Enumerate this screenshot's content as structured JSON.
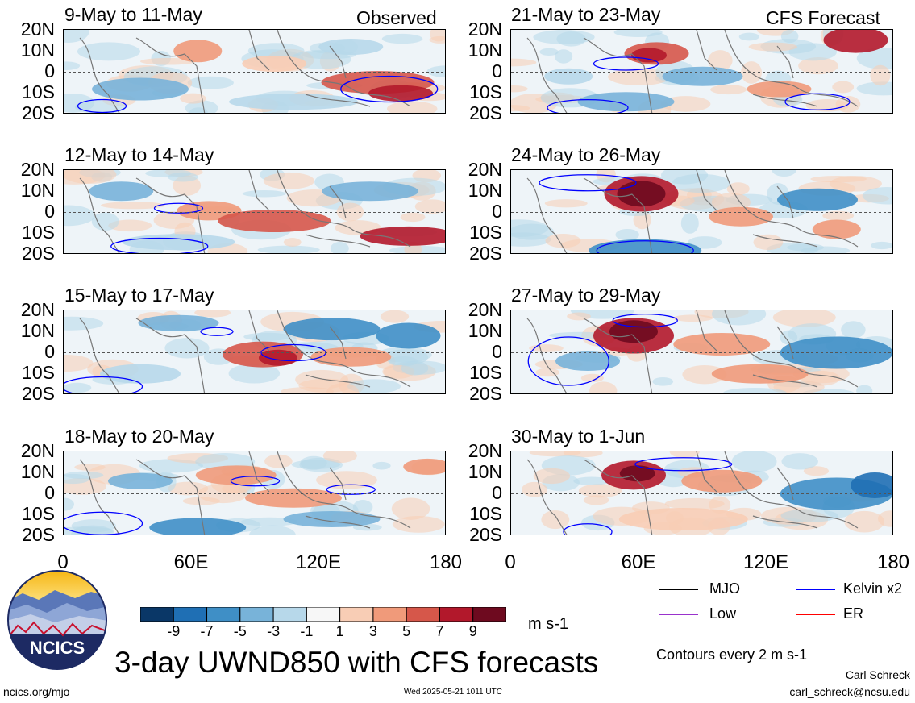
{
  "panels": [
    {
      "title": "9-May to 11-May",
      "tag": "Observed"
    },
    {
      "title": "21-May to 23-May",
      "tag": "CFS Forecast"
    },
    {
      "title": "12-May to 14-May",
      "tag": ""
    },
    {
      "title": "24-May to 26-May",
      "tag": ""
    },
    {
      "title": "15-May to 17-May",
      "tag": ""
    },
    {
      "title": "27-May to 29-May",
      "tag": ""
    },
    {
      "title": "18-May to 20-May",
      "tag": ""
    },
    {
      "title": "30-May to 1-Jun",
      "tag": ""
    }
  ],
  "lat_labels": [
    "20N",
    "10N",
    "0",
    "10S",
    "20S"
  ],
  "lon_labels": [
    "0",
    "60E",
    "120E",
    "180"
  ],
  "colorbar": {
    "labels": [
      "-9",
      "-7",
      "-5",
      "-3",
      "-1",
      "1",
      "3",
      "5",
      "7",
      "9"
    ],
    "colors": [
      "#0a3767",
      "#1f6fb4",
      "#3f8fc6",
      "#78b3d9",
      "#b7d8ea",
      "#f7f7f7",
      "#f8cdb5",
      "#f09a7a",
      "#d6574a",
      "#b2182b",
      "#6e0a1f"
    ],
    "units": "m s-1"
  },
  "legend": {
    "mjo": {
      "label": "MJO",
      "color": "#000000"
    },
    "kelvin": {
      "label": "Kelvin x2",
      "color": "#0000ff"
    },
    "low": {
      "label": "Low",
      "color": "#9932cc"
    },
    "er": {
      "label": "ER",
      "color": "#ff0000"
    },
    "contours_note": "Contours every 2 m s-1"
  },
  "logo": {
    "text": "NCICS"
  },
  "main_title": "3-day UWND850 with CFS forecasts",
  "footer": {
    "left": "ncics.org/mjo",
    "center": "Wed 2025-05-21 1011 UTC",
    "author": "Carl Schreck",
    "email": "carl_schreck@ncsu.edu"
  }
}
